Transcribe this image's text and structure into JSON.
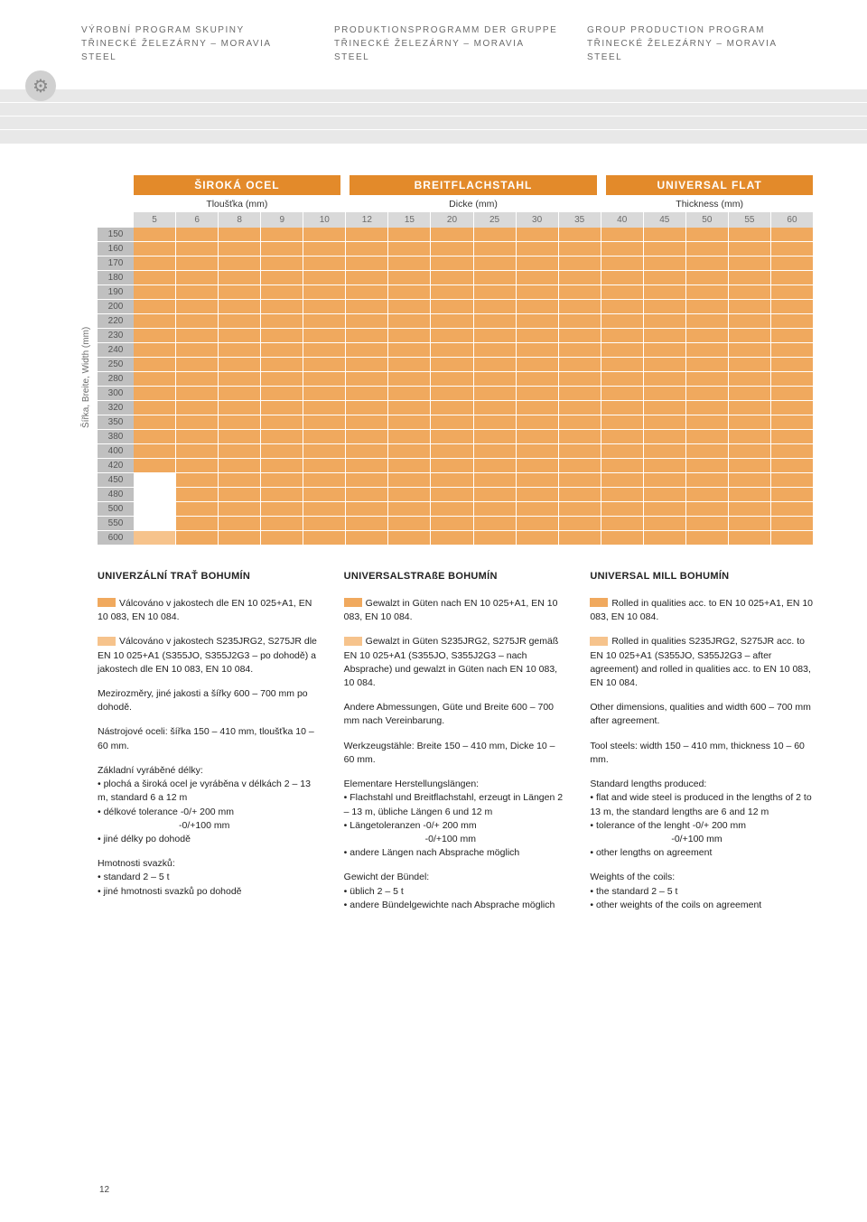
{
  "header": {
    "col1": {
      "line1": "VÝROBNÍ PROGRAM SKUPINY",
      "line2": "TŘINECKÉ ŽELEZÁRNY – MORAVIA STEEL"
    },
    "col2": {
      "line1": "PRODUKTIONSPROGRAMM DER GRUPPE",
      "line2": "TŘINECKÉ ŽELEZÁRNY – MORAVIA STEEL"
    },
    "col3": {
      "line1": "GROUP PRODUCTION PROGRAM",
      "line2": "TŘINECKÉ ŽELEZÁRNY – MORAVIA STEEL"
    }
  },
  "table": {
    "y_axis_label": "Šířka, Breite, Width (mm)",
    "categories": [
      "ŠIROKÁ OCEL",
      "BREITFLACHSTAHL",
      "UNIVERSAL FLAT"
    ],
    "subheaders": [
      "Tloušťka (mm)",
      "Dicke (mm)",
      "Thickness (mm)"
    ],
    "thickness": [
      "5",
      "6",
      "8",
      "9",
      "10",
      "12",
      "15",
      "20",
      "25",
      "30",
      "35",
      "40",
      "45",
      "50",
      "55",
      "60"
    ],
    "widths": [
      "150",
      "160",
      "170",
      "180",
      "190",
      "200",
      "220",
      "230",
      "240",
      "250",
      "280",
      "300",
      "320",
      "350",
      "380",
      "400",
      "420",
      "450",
      "480",
      "500",
      "550",
      "600"
    ],
    "grid_pattern": {
      "all_orange_rows": [
        0,
        1,
        2,
        3,
        4,
        5,
        6,
        7,
        8,
        9,
        10,
        11,
        12,
        13,
        14,
        15,
        16,
        21
      ],
      "first_white_rows": [
        17,
        18,
        19,
        20
      ],
      "first_light_rows": [
        21
      ]
    },
    "colors": {
      "cat_bg": "#e38a2a",
      "orange": "#f0a95e",
      "light_orange": "#f6c38c",
      "width_bg": "#c0c0c0",
      "thick_bg": "#d9d9d9"
    }
  },
  "columns": {
    "cz": {
      "title": "UNIVERZÁLNÍ TRAŤ BOHUMÍN",
      "p1": "Válcováno v jakostech dle EN 10 025+A1, EN 10 083, EN 10 084.",
      "p2": "Válcováno v jakostech S235JRG2, S275JR dle EN 10 025+A1 (S355JO, S355J2G3 – po dohodě) a jakostech dle EN 10 083, EN 10 084.",
      "p3": "Mezirozměry, jiné jakosti a šířky 600 – 700 mm po dohodě.",
      "p4": "Nástrojové oceli: šířka 150 – 410 mm, tloušťka 10 – 60 mm.",
      "p5_title": "Základní vyráběné délky:",
      "p5_b1": "plochá a široká ocel je vyráběna v délkách 2 – 13 m, standard 6 a 12 m",
      "p5_b2": "délkové tolerance -0/+ 200 mm",
      "p5_b2b": "-0/+100 mm",
      "p5_b3": "jiné délky po dohodě",
      "p6_title": "Hmotnosti svazků:",
      "p6_b1": "standard 2 – 5 t",
      "p6_b2": "jiné hmotnosti svazků po dohodě"
    },
    "de": {
      "title": "UNIVERSALSTRAßE BOHUMÍN",
      "p1": "Gewalzt in Güten nach EN 10 025+A1, EN 10 083, EN 10 084.",
      "p2": "Gewalzt in Güten S235JRG2, S275JR gemäß EN 10 025+A1 (S355JO, S355J2G3 – nach Absprache) und gewalzt in Güten nach EN 10 083, 10 084.",
      "p3": "Andere Abmessungen, Güte und Breite 600 – 700 mm nach Vereinbarung.",
      "p4": "Werkzeugstähle: Breite 150 – 410 mm, Dicke 10 – 60 mm.",
      "p5_title": "Elementare Herstellungslängen:",
      "p5_b1": "Flachstahl und Breitflachstahl, erzeugt in Längen 2 – 13 m, übliche Längen 6 und 12 m",
      "p5_b2": "Längetoleranzen -0/+ 200 mm",
      "p5_b2b": "-0/+100 mm",
      "p5_b3": "andere Längen nach Absprache möglich",
      "p6_title": "Gewicht der Bündel:",
      "p6_b1": "üblich 2 – 5 t",
      "p6_b2": "andere Bündelgewichte nach Absprache möglich"
    },
    "en": {
      "title": "UNIVERSAL MILL BOHUMÍN",
      "p1": "Rolled in qualities acc. to EN 10 025+A1, EN 10 083, EN 10 084.",
      "p2": "Rolled in qualities S235JRG2, S275JR acc. to EN 10 025+A1 (S355JO, S355J2G3 – after agreement) and rolled in qualities acc. to EN 10 083, EN 10 084.",
      "p3": "Other dimensions, qualities and width 600 – 700 mm after agreement.",
      "p4": "Tool steels: width 150 – 410 mm, thickness 10 – 60 mm.",
      "p5_title": "Standard lengths produced:",
      "p5_b1": "flat and wide steel is produced in the lengths of 2 to 13 m, the standard lengths are 6 and 12 m",
      "p5_b2": "tolerance of the lenght -0/+ 200 mm",
      "p5_b2b": "-0/+100 mm",
      "p5_b3": "other lengths on agreement",
      "p6_title": "Weights of the coils:",
      "p6_b1": "the standard 2 – 5 t",
      "p6_b2": "other weights of the coils on agreement"
    }
  },
  "page_number": "12"
}
